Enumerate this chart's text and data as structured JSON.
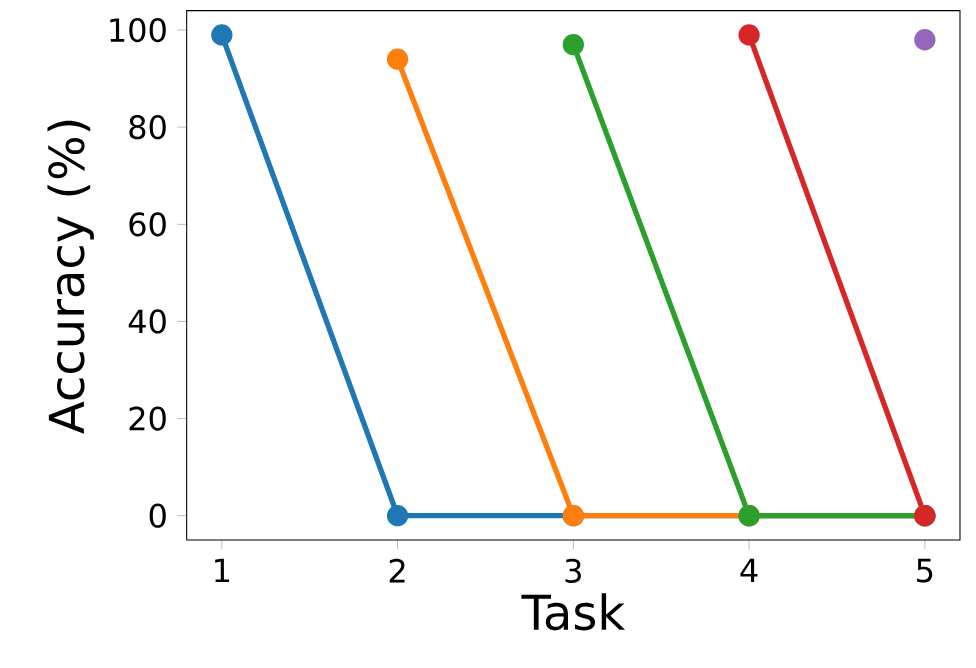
{
  "chart_data": {
    "type": "line",
    "xlabel": "Task",
    "ylabel": "Accuracy (%)",
    "x": [
      1,
      2,
      3,
      4,
      5
    ],
    "xlim": [
      0.8,
      5.2
    ],
    "ylim": [
      -5,
      104
    ],
    "xticks": [
      1,
      2,
      3,
      4,
      5
    ],
    "yticks": [
      0,
      20,
      40,
      60,
      80,
      100
    ],
    "marker": "circle",
    "grid": false,
    "legend": false,
    "series": [
      {
        "color": "#1f77b4",
        "values": [
          99,
          0,
          0,
          0,
          0
        ]
      },
      {
        "color": "#ff7f0e",
        "values": [
          null,
          94,
          0,
          0,
          0
        ]
      },
      {
        "color": "#2ca02c",
        "values": [
          null,
          null,
          97,
          0,
          0
        ]
      },
      {
        "color": "#d62728",
        "values": [
          null,
          null,
          null,
          99,
          0
        ]
      },
      {
        "color": "#9467bd",
        "values": [
          null,
          null,
          null,
          null,
          98
        ]
      }
    ]
  }
}
